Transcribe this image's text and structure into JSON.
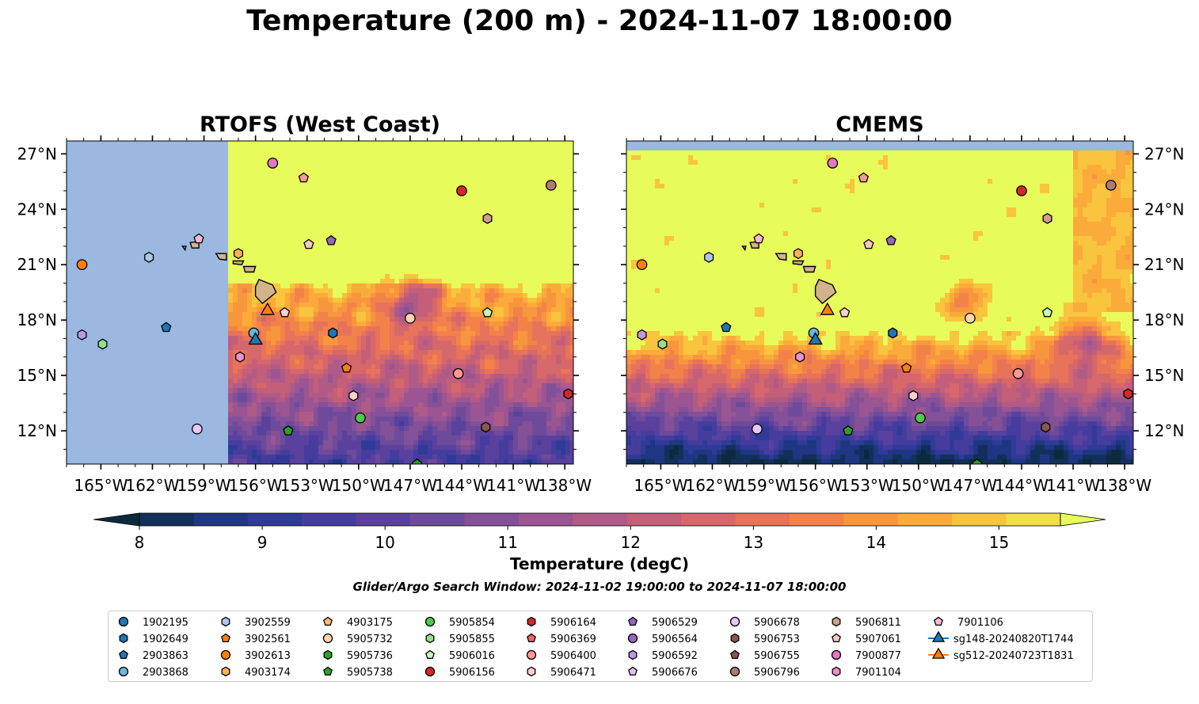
{
  "figure": {
    "title": "Temperature (200 m) - 2024-11-07 18:00:00",
    "search_window": "Glider/Argo Search Window: 2024-11-02 19:00:00 to 2024-11-07 18:00:00"
  },
  "chart_data": [
    {
      "type": "heatmap",
      "title": "RTOFS (West Coast)",
      "xlim": [
        -167,
        -137.5
      ],
      "ylim": [
        10.2,
        27.7
      ],
      "xticks": [
        "165°W",
        "162°W",
        "159°W",
        "156°W",
        "153°W",
        "150°W",
        "147°W",
        "144°W",
        "141°W",
        "138°W"
      ],
      "yticks": [
        "27°N",
        "24°N",
        "21°N",
        "18°N",
        "15°N",
        "12°N"
      ],
      "axis_side": "left",
      "domain_west_edge_lon": -157.7,
      "domain_south_edge_lat": 10.3,
      "field_description": "warm (>15 degC) in north, cooling toward south (~10 degC near 11-13N)"
    },
    {
      "type": "heatmap",
      "title": "CMEMS",
      "xlim": [
        -167,
        -137.5
      ],
      "ylim": [
        10.2,
        27.7
      ],
      "xticks": [
        "165°W",
        "162°W",
        "159°W",
        "156°W",
        "153°W",
        "150°W",
        "147°W",
        "144°W",
        "141°W",
        "138°W"
      ],
      "yticks": [
        "27°N",
        "24°N",
        "21°N",
        "18°N",
        "15°N",
        "12°N"
      ],
      "axis_side": "right",
      "domain_north_edge_lat": 27.1,
      "field_description": "mostly >15 degC north of 17N, cold eddies ~9-10 degC south of 16N"
    }
  ],
  "colorbar": {
    "label": "Temperature (degC)",
    "ticks": [
      "8",
      "9",
      "10",
      "11",
      "12",
      "13",
      "14",
      "15"
    ],
    "min": 7.5,
    "max": 15.5,
    "step": 0.5,
    "colors": [
      "#0b2a3e",
      "#13305b",
      "#1f3683",
      "#2f3b97",
      "#453d9e",
      "#5a419e",
      "#6e4a9b",
      "#845098",
      "#9a5592",
      "#b05b87",
      "#c45f79",
      "#d6676a",
      "#e6735a",
      "#f2824a",
      "#f8963e",
      "#fbab3a",
      "#f9c43e",
      "#f1df48",
      "#e7fb5a"
    ]
  },
  "land": {
    "color": "#d2b48c",
    "islands": [
      {
        "name": "Hawaii",
        "lon": -155.5,
        "lat": 19.6
      },
      {
        "name": "Maui",
        "lon": -156.3,
        "lat": 20.8
      },
      {
        "name": "Molokai",
        "lon": -157.0,
        "lat": 21.1
      },
      {
        "name": "Oahu",
        "lon": -158.0,
        "lat": 21.5
      },
      {
        "name": "Kauai",
        "lon": -159.5,
        "lat": 22.1
      },
      {
        "name": "Niihau",
        "lon": -160.1,
        "lat": 21.9
      }
    ]
  },
  "legend": {
    "items": [
      {
        "label": "1902195",
        "marker": "circle",
        "color": "#1f77b4",
        "lon": null,
        "lat": null
      },
      {
        "label": "1902649",
        "marker": "hexagon",
        "color": "#1f77b4",
        "lon": -151.5,
        "lat": 17.3
      },
      {
        "label": "2903863",
        "marker": "pentagon",
        "color": "#1f77b4",
        "lon": -161.2,
        "lat": 17.6
      },
      {
        "label": "2903868",
        "marker": "circle",
        "color": "#67b8e0",
        "lon": -156.1,
        "lat": 17.3
      },
      {
        "label": "3902559",
        "marker": "hexagon",
        "color": "#aec7e8",
        "lon": -162.2,
        "lat": 21.4
      },
      {
        "label": "3902561",
        "marker": "pentagon",
        "color": "#ff7f0e",
        "lon": -150.7,
        "lat": 15.4
      },
      {
        "label": "3902613",
        "marker": "circle",
        "color": "#ff7f0e",
        "lon": -166.1,
        "lat": 21.0
      },
      {
        "label": "4903174",
        "marker": "hexagon",
        "color": "#ffb15a",
        "lon": -157.0,
        "lat": 21.6
      },
      {
        "label": "4903175",
        "marker": "pentagon",
        "color": "#ffbb78",
        "lon": null,
        "lat": null
      },
      {
        "label": "5905732",
        "marker": "circle",
        "color": "#ffd6b0",
        "lon": null,
        "lat": null
      },
      {
        "label": "5905736",
        "marker": "hexagon",
        "color": "#2ca02c",
        "lon": null,
        "lat": null
      },
      {
        "label": "5905738",
        "marker": "pentagon",
        "color": "#2ca02c",
        "lon": -154.1,
        "lat": 12.0
      },
      {
        "label": "5905854",
        "marker": "circle",
        "color": "#50c850",
        "lon": -149.9,
        "lat": 12.7
      },
      {
        "label": "5905855",
        "marker": "hexagon",
        "color": "#98df8a",
        "lon": -164.9,
        "lat": 16.7
      },
      {
        "label": "5906016",
        "marker": "pentagon",
        "color": "#c8f5b8",
        "lon": -142.5,
        "lat": 18.4
      },
      {
        "label": "5906156",
        "marker": "circle",
        "color": "#d62728",
        "lon": -144.0,
        "lat": 25.0
      },
      {
        "label": "5906164",
        "marker": "hexagon",
        "color": "#d62728",
        "lon": -137.8,
        "lat": 14.0
      },
      {
        "label": "5906369",
        "marker": "pentagon",
        "color": "#e8676a",
        "lon": null,
        "lat": null
      },
      {
        "label": "5906400",
        "marker": "circle",
        "color": "#ff9896",
        "lon": -144.2,
        "lat": 15.1
      },
      {
        "label": "5906471",
        "marker": "hexagon",
        "color": "#ffd0cc",
        "lon": -150.3,
        "lat": 13.9
      },
      {
        "label": "5906529",
        "marker": "pentagon",
        "color": "#9467bd",
        "lon": -151.6,
        "lat": 22.3
      },
      {
        "label": "5906564",
        "marker": "circle",
        "color": "#9467bd",
        "lon": null,
        "lat": null
      },
      {
        "label": "5906592",
        "marker": "hexagon",
        "color": "#b99ae0",
        "lon": -166.1,
        "lat": 17.2
      },
      {
        "label": "5906676",
        "marker": "pentagon",
        "color": "#d8c4f0",
        "lon": null,
        "lat": null
      },
      {
        "label": "5906678",
        "marker": "circle",
        "color": "#e8c8f8",
        "lon": -159.4,
        "lat": 12.1
      },
      {
        "label": "5906753",
        "marker": "hexagon",
        "color": "#8c564b",
        "lon": -142.6,
        "lat": 12.2
      },
      {
        "label": "5906755",
        "marker": "pentagon",
        "color": "#8c564b",
        "lon": null,
        "lat": null
      },
      {
        "label": "5906796",
        "marker": "circle",
        "color": "#b07c6e",
        "lon": -138.8,
        "lat": 25.3
      },
      {
        "label": "5906811",
        "marker": "hexagon",
        "color": "#d0a08e",
        "lon": -142.5,
        "lat": 23.5
      },
      {
        "label": "5907061",
        "marker": "pentagon",
        "color": "#f8c8b8",
        "lon": -152.9,
        "lat": 22.1
      },
      {
        "label": "7900877",
        "marker": "circle",
        "color": "#e377c2",
        "lon": -155.0,
        "lat": 26.5
      },
      {
        "label": "7901104",
        "marker": "hexagon",
        "color": "#e890d0",
        "lon": -156.9,
        "lat": 16.0
      },
      {
        "label": "7901106",
        "marker": "pentagon",
        "color": "#f7b6d2",
        "lon": -159.3,
        "lat": 22.4
      },
      {
        "label": "sg148-20240820T1744",
        "marker": "triangle",
        "color": "#1f77b4",
        "lon": -156.0,
        "lat": 16.9
      },
      {
        "label": "sg512-20240723T1831",
        "marker": "triangle",
        "color": "#ff7f0e",
        "lon": -155.3,
        "lat": 18.5
      }
    ]
  },
  "extra_markers": [
    {
      "marker": "circle",
      "color": "#ffd6b0",
      "lon": -147.0,
      "lat": 18.1
    },
    {
      "marker": "pentagon",
      "color": "#ff9896",
      "lon": -153.2,
      "lat": 25.7
    },
    {
      "marker": "pentagon",
      "color": "#ffd0cc",
      "lon": -154.3,
      "lat": 18.4
    },
    {
      "marker": "hexagon",
      "color": "#e890d0",
      "lon": null,
      "lat": null
    },
    {
      "marker": "pentagon",
      "color": "#2ca02c",
      "lon": -146.6,
      "lat": 10.2
    }
  ]
}
